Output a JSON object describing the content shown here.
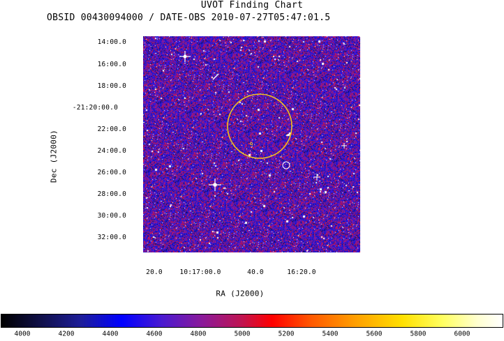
{
  "title": "UVOT Finding Chart",
  "subtitle": "OBSID 00430094000 / DATE-OBS 2010-07-27T05:47:01.5",
  "y_axis": {
    "label": "Dec  (J2000)",
    "ticks": [
      "14:00.0",
      "16:00.0",
      "18:00.0",
      "-21:20:00.0",
      "22:00.0",
      "24:00.0",
      "26:00.0",
      "28:00.0",
      "30:00.0",
      "32:00.0"
    ]
  },
  "x_axis": {
    "label": "RA (J2000)",
    "ticks": [
      "20.0",
      "10:17:00.0",
      "40.0",
      "16:20.0"
    ]
  },
  "colorbar": {
    "ticks": [
      "4000",
      "4200",
      "4400",
      "4600",
      "4800",
      "5000",
      "5200",
      "5400",
      "5600",
      "5800",
      "6000"
    ]
  },
  "colors": {
    "background_blue": "#1a18c8",
    "noise_red": "#e01010",
    "circle_yellow": "#f0c020",
    "star_white": "#ffffff"
  }
}
